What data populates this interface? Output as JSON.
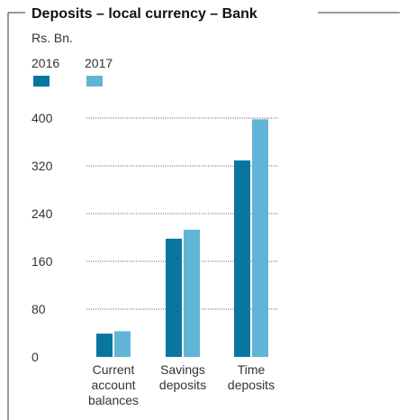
{
  "chart_data": {
    "type": "bar",
    "title": "Deposits – local currency – Bank",
    "ylabel": "Rs. Bn.",
    "xlabel": "",
    "categories": [
      [
        "Current",
        "account",
        "balances"
      ],
      [
        "Savings",
        "deposits"
      ],
      [
        "Time",
        "deposits"
      ]
    ],
    "series": [
      {
        "name": "2016",
        "color": "#0a76a0",
        "values": [
          39,
          198,
          329
        ]
      },
      {
        "name": "2017",
        "color": "#62b4d6",
        "values": [
          43,
          213,
          398
        ]
      }
    ],
    "ylim": [
      0,
      400
    ],
    "yticks": [
      "0",
      "80",
      "160",
      "240",
      "320",
      "400"
    ],
    "grid": "dotted horizontal",
    "legend": "top-left"
  }
}
